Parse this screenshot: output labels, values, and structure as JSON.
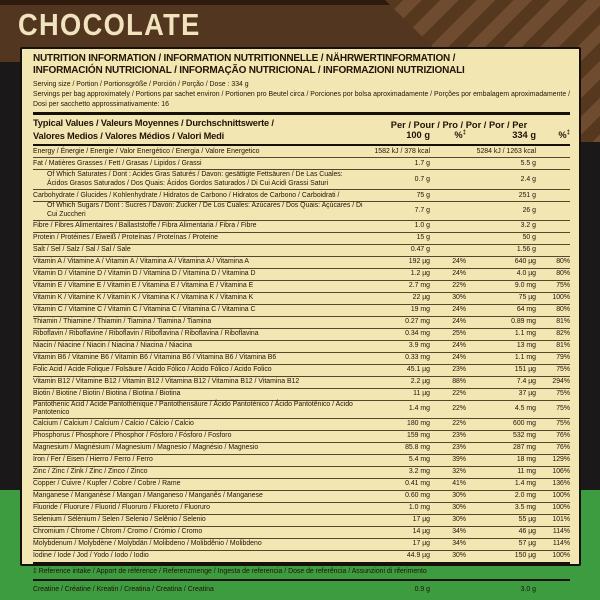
{
  "title": "CHOCOLATE",
  "colors": {
    "pouch_brown": "#533620",
    "pouch_stripe": "#6f4b30",
    "panel_cream": "#f2e7b3",
    "pouch_green": "#3d9b40",
    "ink": "#221307"
  },
  "panel": {
    "header1": "NUTRITION INFORMATION / INFORMATION NUTRITIONNELLE / NÄHRWERTINFORMATION /",
    "header2": "INFORMACIÓN NUTRICIONAL / INFORMAÇÃO NUTRICIONAL / INFORMAZIONI NUTRIZIONALI",
    "serving1": "Serving size / Portion / Portionsgröße / Porción / Porção / Dose : 334 g",
    "serving2": "Servings per bag approximately / Portions par sachet environ / Portionen pro Beutel circa / Porciones por bolsa aproximadamente / Porções por embalagem aproximadamente /",
    "serving3": "Dosi per sacchetto approssimativamente: 16",
    "col": {
      "tv1": "Typical Values / Valeurs Moyennes / Durchschnittswerte /",
      "tv2": "Valores Medios / Valores Médios / Valori Medi",
      "per": "Per / Pour / Pro / Por / Por / Per",
      "c100": "100 g",
      "p1": "%",
      "p1sup": "‡",
      "c334": "334 g",
      "p2": "%",
      "p2sup": "‡"
    },
    "rows": [
      {
        "label": "Energy / Énergie / Energie / Valor Energético / Energia / Valore Energetico",
        "v100": "1582 kJ / 378 kcal",
        "p100": "",
        "v334": "5284 kJ / 1263 kcal",
        "p334": ""
      },
      {
        "label": "Fat / Matières Grasses / Fett / Grasas / Lipidos / Grassi",
        "v100": "1.7 g",
        "p100": "",
        "v334": "5.5 g",
        "p334": ""
      },
      {
        "label": "Of Which Saturates / Dont : Acides Gras Saturés / Davon: gesättigte Fettsäuren / De Las Cuales:",
        "label2": "Ácidos Grasos Saturados / Dos Quais: Ácidos Gordos Saturados / Di Cui Acidi Grassi Saturi",
        "indent": true,
        "v100": "0.7 g",
        "p100": "",
        "v334": "2.4 g",
        "p334": ""
      },
      {
        "label": "Carbohydrate / Glucides / Kohlenhydrate / Hidratos de Carbono / Hidratos de Carbono / Carboidrati /",
        "v100": "75 g",
        "p100": "",
        "v334": "251 g",
        "p334": ""
      },
      {
        "label": "Of Which Sugars / Dont : Sucres / Davon: Zucker / De Los Cuales: Azúcares / Dos Quais: Açúcares / Di Cui Zuccheri",
        "indent": true,
        "v100": "7.7 g",
        "p100": "",
        "v334": "26 g",
        "p334": ""
      },
      {
        "label": "Fibre / Fibres Alimentaires / Ballaststoffe / Fibra Alimentaria / Fibra / Fibre",
        "v100": "1.0 g",
        "p100": "",
        "v334": "3.2 g",
        "p334": ""
      },
      {
        "label": "Protein / Protéines / Eiweiß / Proteínas / Proteínas / Proteine",
        "v100": "15 g",
        "p100": "",
        "v334": "50 g",
        "p334": ""
      },
      {
        "label": "Salt / Sel / Salz / Sal / Sal / Sale",
        "v100": "0.47 g",
        "p100": "",
        "v334": "1.56 g",
        "p334": ""
      },
      {
        "label": "Vitamin A / Vitamine A / Vitamin A / Vitamina A / Vitamina A / Vitamina A",
        "v100": "192 µg",
        "p100": "24%",
        "v334": "640 µg",
        "p334": "80%"
      },
      {
        "label": "Vitamin D / Vitamine D / Vitamin D / Vitamina D / Vitamina D / Vitamina D",
        "v100": "1.2 µg",
        "p100": "24%",
        "v334": "4.0 µg",
        "p334": "80%"
      },
      {
        "label": "Vitamin E / Vitamine E / Vitamin E / Vitamina E / Vitamina E / Vitamina E",
        "v100": "2.7 mg",
        "p100": "22%",
        "v334": "9.0 mg",
        "p334": "75%"
      },
      {
        "label": "Vitamin K / Vitamine K / Vitamin K / Vitamina K / Vitamina K / Vitamina K",
        "v100": "22 µg",
        "p100": "30%",
        "v334": "75 µg",
        "p334": "100%"
      },
      {
        "label": "Vitamin C / Vitamine C / Vitamin C / Vitamina C / Vitamina C / Vitamina C",
        "v100": "19 mg",
        "p100": "24%",
        "v334": "64 mg",
        "p334": "80%"
      },
      {
        "label": "Thiamin / Thiamine / Thiamin / Tiamina / Tiamina / Tiamina",
        "v100": "0.27 mg",
        "p100": "24%",
        "v334": "0.89 mg",
        "p334": "81%"
      },
      {
        "label": "Riboflavin / Riboflavine / Riboflavin / Riboflavina / Riboflavina / Riboflavina",
        "v100": "0.34 mg",
        "p100": "25%",
        "v334": "1.1 mg",
        "p334": "82%"
      },
      {
        "label": "Niacin / Niacine / Niacin / Niacina / Niacina / Niacina",
        "v100": "3.9 mg",
        "p100": "24%",
        "v334": "13 mg",
        "p334": "81%"
      },
      {
        "label": "Vitamin B6 / Vitamine B6 / Vitamin B6 / Vitamina B6 / Vitamina B6 / Vitamina B6",
        "v100": "0.33 mg",
        "p100": "24%",
        "v334": "1.1 mg",
        "p334": "79%"
      },
      {
        "label": "Folic Acid / Acide Folique / Folsäure / Ácido Fólico / Ácido Fólico / Acido Folico",
        "v100": "45.1 µg",
        "p100": "23%",
        "v334": "151 µg",
        "p334": "75%"
      },
      {
        "label": "Vitamin B12 / Vitamine B12 / Vitamin B12 / Vitamina B12 / Vitamina B12 / Vitamina B12",
        "v100": "2.2 µg",
        "p100": "88%",
        "v334": "7.4 µg",
        "p334": "294%"
      },
      {
        "label": "Biotin / Biotine / Biotin / Biotina / Biotina / Biotina",
        "v100": "11 µg",
        "p100": "22%",
        "v334": "37 µg",
        "p334": "75%"
      },
      {
        "label": "Pantothenic Acid / Acide Pantothénique / Pantothensäure / Ácido Pantoténico / Ácido Pantotênico / Acido Pantotenico",
        "v100": "1.4 mg",
        "p100": "22%",
        "v334": "4.5 mg",
        "p334": "75%"
      },
      {
        "label": "Calcium / Calcium / Calcium / Calcio / Cálcio / Calcio",
        "v100": "180 mg",
        "p100": "22%",
        "v334": "600 mg",
        "p334": "75%"
      },
      {
        "label": "Phosphorus / Phosphore / Phosphor / Fósforo / Fósforo / Fosforo",
        "v100": "159 mg",
        "p100": "23%",
        "v334": "532 mg",
        "p334": "76%"
      },
      {
        "label": "Magnesium / Magnésium / Magnesium / Magnesio / Magnésio / Magnesio",
        "v100": "85.8 mg",
        "p100": "23%",
        "v334": "287 mg",
        "p334": "76%"
      },
      {
        "label": "Iron / Fer / Eisen / Hierro / Ferro / Ferro",
        "v100": "5.4 mg",
        "p100": "39%",
        "v334": "18 mg",
        "p334": "129%"
      },
      {
        "label": "Zinc / Zinc / Zink / Zinc / Zinco / Zinco",
        "v100": "3.2 mg",
        "p100": "32%",
        "v334": "11 mg",
        "p334": "106%"
      },
      {
        "label": "Copper / Cuivre / Kupfer / Cobre / Cobre / Rame",
        "v100": "0.41 mg",
        "p100": "41%",
        "v334": "1.4 mg",
        "p334": "136%"
      },
      {
        "label": "Manganese / Manganèse / Mangan / Manganeso / Manganês / Manganese",
        "v100": "0.60 mg",
        "p100": "30%",
        "v334": "2.0 mg",
        "p334": "100%"
      },
      {
        "label": "Fluoride / Fluorure / Fluorid / Fluoruro / Fluoreto / Fluoruro",
        "v100": "1.0 mg",
        "p100": "30%",
        "v334": "3.5 mg",
        "p334": "100%"
      },
      {
        "label": "Selenium / Sélénium / Selen / Selenio / Selênio / Selenio",
        "v100": "17 µg",
        "p100": "30%",
        "v334": "55 µg",
        "p334": "101%"
      },
      {
        "label": "Chromium / Chrome / Chrom / Cromo / Crómio / Cromo",
        "v100": "14 µg",
        "p100": "34%",
        "v334": "46 µg",
        "p334": "114%"
      },
      {
        "label": "Molybdenum / Molybdène / Molybdän / Molibdeno / Molibdênio / Molibdeno",
        "v100": "17 µg",
        "p100": "34%",
        "v334": "57 µg",
        "p334": "114%"
      },
      {
        "label": "Iodine / Iode / Jod / Yodo / Iodo / Iodio",
        "v100": "44.9 µg",
        "p100": "30%",
        "v334": "150 µg",
        "p334": "100%"
      }
    ],
    "footnote": "‡ Reference intake / Apport de référence / Referenzmenge / Ingesta de referencia / Dose de referência / Assunzioni di riferimento",
    "creatine": {
      "label": "Creatine / Créatine / Kreatin / Creatina / Creatina / Creatina",
      "v100": "0.9 g",
      "p100": "",
      "v334": "3.0 g",
      "p334": ""
    }
  }
}
